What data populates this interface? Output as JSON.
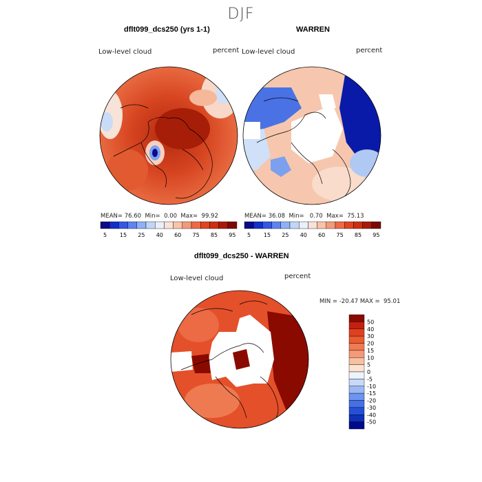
{
  "season": "DJF",
  "panels": [
    {
      "title": "dflt099_dcs250 (yrs 1-1)",
      "variable": "Low-level cloud",
      "units": "percent",
      "stats": {
        "mean_label": "MEAN=",
        "mean": "76.60",
        "min_label": "Min=",
        "min": "0.00",
        "max_label": "Max=",
        "max": "99.92"
      }
    },
    {
      "title": "WARREN",
      "variable": "Low-level cloud",
      "units": "percent",
      "stats": {
        "mean_label": "MEAN=",
        "mean": "36.08",
        "min_label": "Min=",
        "min": "0.70",
        "max_label": "Max=",
        "max": "75.13"
      }
    }
  ],
  "diff": {
    "title": "dflt099_dcs250 - WARREN",
    "variable": "Low-level cloud",
    "units": "percent",
    "minmax": "MIN = -20.47 MAX =  95.01"
  },
  "colorbar_abs": {
    "ticks": [
      "5",
      "15",
      "25",
      "40",
      "60",
      "75",
      "85",
      "95"
    ],
    "colors": [
      "#0a0a8a",
      "#1530c8",
      "#3358e6",
      "#5d84f0",
      "#8fb0f5",
      "#c1d5f8",
      "#e8f0fb",
      "#fbe2d6",
      "#f8c3a8",
      "#f39a78",
      "#ec6a48",
      "#e04520",
      "#cc3010",
      "#a81a08",
      "#7a0a00"
    ]
  },
  "colorbar_diff": {
    "ticks": [
      "50",
      "40",
      "30",
      "20",
      "15",
      "10",
      "5",
      "0",
      "-5",
      "-10",
      "-15",
      "-20",
      "-30",
      "-40",
      "-50"
    ],
    "colors": [
      "#8a0a00",
      "#c42010",
      "#e04020",
      "#ec5a30",
      "#f27a50",
      "#f59a78",
      "#f8c0a0",
      "#fbe2d2",
      "#eef3fb",
      "#c8d8f8",
      "#9bb8f4",
      "#6d94ee",
      "#4670e6",
      "#2450d8",
      "#1030b8",
      "#000a8c"
    ]
  }
}
